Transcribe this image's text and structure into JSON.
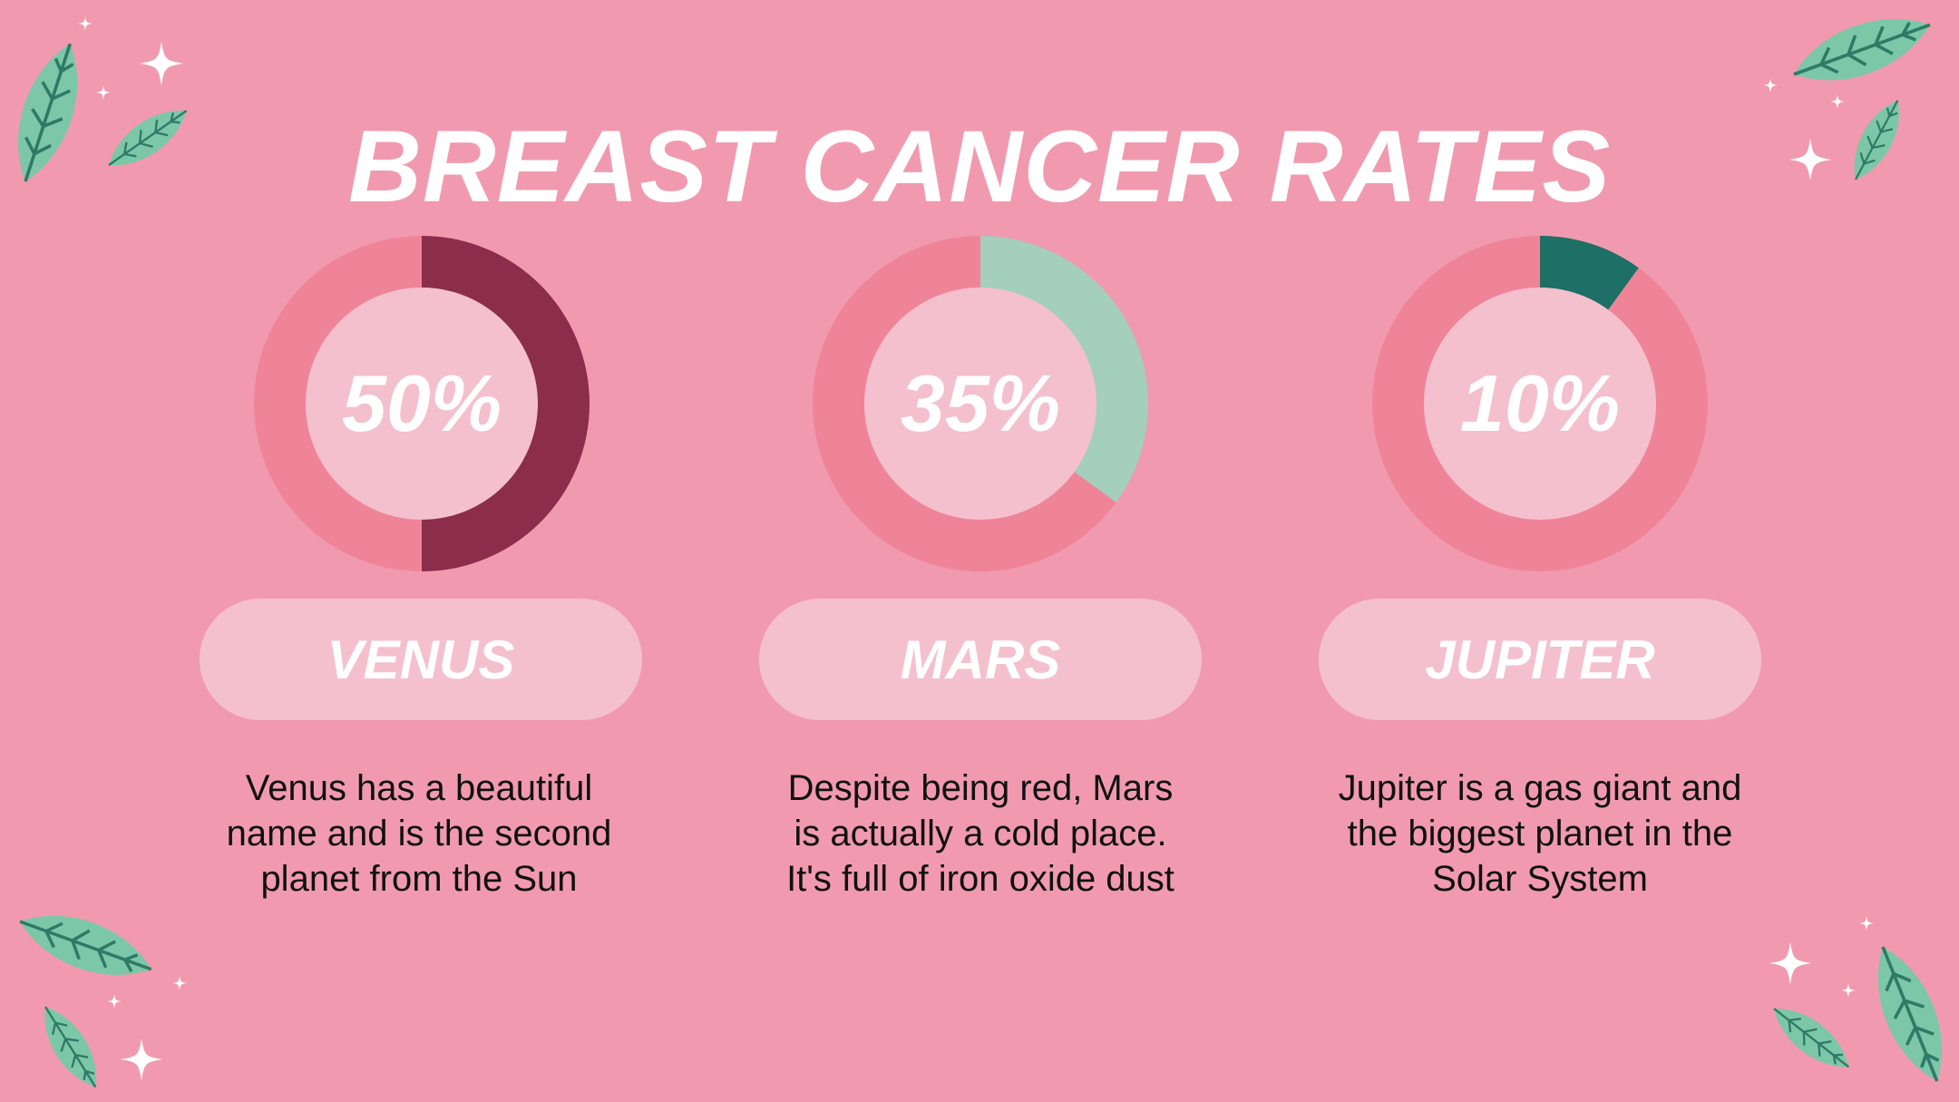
{
  "title": "BREAST CANCER RATES",
  "colors": {
    "background": "#f19aaf",
    "ring_base": "#ef8499",
    "inner_disc": "#f4c0ce",
    "pill": "#f4c0ce",
    "leaf": "#7cc7a8",
    "leaf_vein": "#2f7a67"
  },
  "chart_data": [
    {
      "type": "pie",
      "title": "VENUS",
      "values": [
        50,
        50
      ],
      "percent_label": "50%",
      "color": "#8b2d4b",
      "description": "Venus has a beautiful name and is the second planet from the Sun"
    },
    {
      "type": "pie",
      "title": "MARS",
      "values": [
        35,
        65
      ],
      "percent_label": "35%",
      "color": "#a3cfbc",
      "description": "Despite being red, Mars is actually a cold place. It's full of iron oxide dust"
    },
    {
      "type": "pie",
      "title": "JUPITER",
      "values": [
        10,
        90
      ],
      "percent_label": "10%",
      "color": "#1e6f66",
      "description": "Jupiter is a gas giant and the biggest planet in the Solar System"
    }
  ]
}
